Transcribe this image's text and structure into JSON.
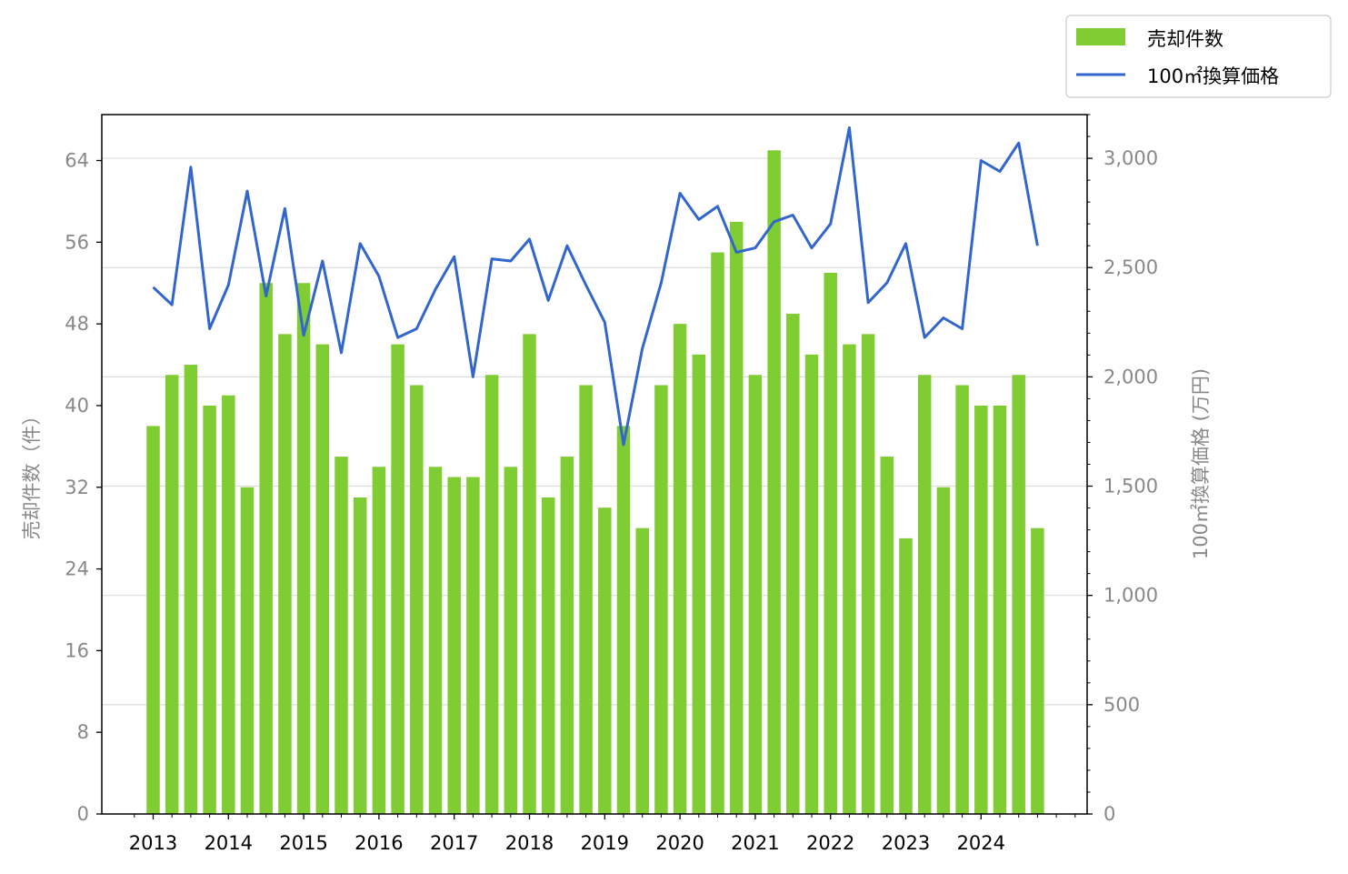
{
  "chart_data": {
    "type": "bar+line",
    "x_tick_labels": [
      "2013",
      "2014",
      "2015",
      "2016",
      "2017",
      "2018",
      "2019",
      "2020",
      "2021",
      "2022",
      "2023",
      "2024"
    ],
    "quarters_per_year": 4,
    "series": [
      {
        "name": "売却件数",
        "type": "bar",
        "axis": "left",
        "color": "#80CC33",
        "values": [
          38,
          43,
          44,
          40,
          41,
          32,
          52,
          47,
          52,
          46,
          35,
          31,
          34,
          46,
          42,
          34,
          33,
          33,
          43,
          34,
          47,
          31,
          35,
          42,
          30,
          38,
          28,
          42,
          48,
          45,
          55,
          58,
          43,
          65,
          49,
          45,
          53,
          46,
          47,
          35,
          27,
          43,
          32,
          42,
          40,
          40,
          43,
          28
        ]
      },
      {
        "name": "100㎡換算価格",
        "type": "line",
        "axis": "right",
        "color": "#3366CC",
        "values": [
          2410,
          2330,
          2960,
          2220,
          2420,
          2850,
          2370,
          2770,
          2190,
          2530,
          2110,
          2610,
          2460,
          2180,
          2220,
          2400,
          2550,
          2000,
          2540,
          2530,
          2630,
          2350,
          2600,
          2420,
          2250,
          1690,
          2130,
          2430,
          2840,
          2720,
          2780,
          2570,
          2590,
          2710,
          2740,
          2590,
          2700,
          3140,
          2340,
          2430,
          2610,
          2180,
          2270,
          2220,
          2990,
          2940,
          3070,
          2600
        ]
      }
    ],
    "left_axis": {
      "label": "売却件数（件）",
      "min": 0,
      "max": 68.5,
      "ticks": [
        "0",
        "8",
        "16",
        "24",
        "32",
        "40",
        "48",
        "56",
        "64"
      ],
      "tick_values": [
        0,
        8,
        16,
        24,
        32,
        40,
        48,
        56,
        64
      ]
    },
    "right_axis": {
      "label": "100㎡換算価格 (万円)",
      "min": 0,
      "max": 3200,
      "ticks": [
        "0",
        "500",
        "1,000",
        "1,500",
        "2,000",
        "2,500",
        "3,000"
      ],
      "tick_values": [
        0,
        500,
        1000,
        1500,
        2000,
        2500,
        3000
      ]
    },
    "grid": "horizontal (right axis)",
    "legend_position": "top-right"
  }
}
